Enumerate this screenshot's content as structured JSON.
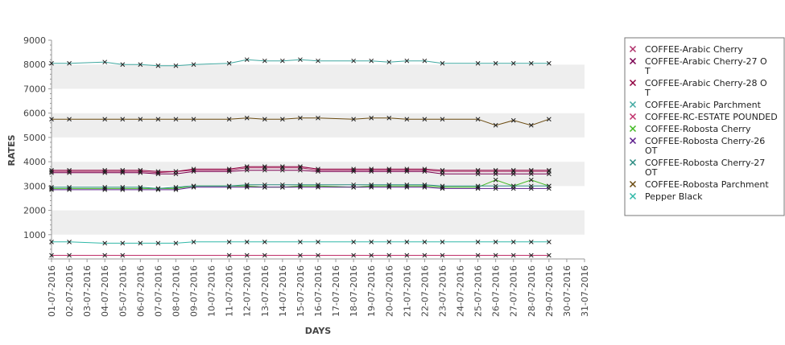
{
  "chart_data": {
    "type": "line",
    "xlabel": "DAYS",
    "ylabel": "RATES",
    "ylim": [
      0,
      9000
    ],
    "y_ticks": [
      "1000",
      "2000",
      "3000",
      "4000",
      "5000",
      "6000",
      "7000",
      "8000",
      "9000"
    ],
    "grid": "horizontal alternating bands",
    "legend_position": "right",
    "categories": [
      "01-07-2016",
      "02-07-2016",
      "03-07-2016",
      "04-07-2016",
      "05-07-2016",
      "06-07-2016",
      "07-07-2016",
      "08-07-2016",
      "09-07-2016",
      "10-07-2016",
      "11-07-2016",
      "12-07-2016",
      "13-07-2016",
      "14-07-2016",
      "15-07-2016",
      "16-07-2016",
      "17-07-2016",
      "18-07-2016",
      "19-07-2016",
      "20-07-2016",
      "21-07-2016",
      "22-07-2016",
      "23-07-2016",
      "24-07-2016",
      "25-07-2016",
      "26-07-2016",
      "27-07-2016",
      "28-07-2016",
      "29-07-2016",
      "30-07-2016",
      "31-07-2016"
    ],
    "series": [
      {
        "name": "COFFEE-Arabic Cherry",
        "legend_lines": [
          "COFFEE-Arabic Cherry"
        ],
        "color": "#b0306a",
        "values": [
          3600,
          3600,
          null,
          3600,
          3600,
          3600,
          3550,
          3600,
          3650,
          null,
          3650,
          3750,
          3750,
          3750,
          3750,
          3650,
          null,
          3650,
          3650,
          3650,
          3650,
          3650,
          3600,
          null,
          3600,
          3600,
          3600,
          3600,
          3600,
          null,
          null
        ]
      },
      {
        "name": "COFFEE-Arabic Cherry-27 OT",
        "legend_lines": [
          "COFFEE-Arabic Cherry-27 O",
          "T"
        ],
        "color": "#7a0050",
        "values": [
          3550,
          3550,
          null,
          3550,
          3550,
          3550,
          3500,
          3500,
          3600,
          null,
          3600,
          3650,
          3650,
          3650,
          3650,
          3600,
          null,
          3600,
          3600,
          3600,
          3600,
          3600,
          3500,
          null,
          3500,
          3500,
          3500,
          3500,
          3500,
          null,
          null
        ]
      },
      {
        "name": "COFFEE-Arabic Cherry-28 OT",
        "legend_lines": [
          "COFFEE-Arabic Cherry-28 O",
          "T"
        ],
        "color": "#900040",
        "values": [
          3650,
          3650,
          null,
          3650,
          3650,
          3650,
          3600,
          3600,
          3700,
          null,
          3700,
          3800,
          3800,
          3800,
          3800,
          3700,
          null,
          3700,
          3700,
          3700,
          3700,
          3700,
          3650,
          null,
          3650,
          3650,
          3650,
          3650,
          3650,
          null,
          null
        ]
      },
      {
        "name": "COFFEE-Arabic Parchment",
        "legend_lines": [
          "COFFEE-Arabic Parchment"
        ],
        "color": "#40a8a0",
        "values": [
          8050,
          8050,
          null,
          8100,
          8000,
          8000,
          7950,
          7950,
          8000,
          null,
          8050,
          8200,
          8150,
          8150,
          8200,
          8150,
          null,
          8150,
          8150,
          8100,
          8150,
          8150,
          8050,
          null,
          8050,
          8050,
          8050,
          8050,
          8050,
          null,
          null
        ]
      },
      {
        "name": "COFFEE-RC-ESTATE POUNDED",
        "legend_lines": [
          "COFFEE-RC-ESTATE POUNDED"
        ],
        "color": "#c0306a",
        "values": [
          150,
          150,
          null,
          150,
          150,
          null,
          null,
          null,
          null,
          null,
          150,
          150,
          150,
          null,
          150,
          150,
          null,
          150,
          150,
          150,
          150,
          150,
          150,
          null,
          150,
          150,
          150,
          150,
          150,
          null,
          null
        ]
      },
      {
        "name": "COFFEE-Robosta Cherry",
        "legend_lines": [
          "COFFEE-Robosta Cherry"
        ],
        "color": "#40b820",
        "values": [
          2900,
          2900,
          null,
          2900,
          2900,
          2900,
          2900,
          2900,
          3000,
          null,
          3000,
          3000,
          2950,
          2950,
          3000,
          3000,
          null,
          2950,
          3000,
          3000,
          3000,
          3000,
          2950,
          null,
          2950,
          3250,
          3000,
          3250,
          3000,
          null,
          null
        ]
      },
      {
        "name": "COFFEE-Robosta Cherry-26 OT",
        "legend_lines": [
          "COFFEE-Robosta Cherry-26",
          "OT"
        ],
        "color": "#5a1a8a",
        "values": [
          2850,
          2850,
          null,
          2850,
          2850,
          2850,
          2850,
          2850,
          2950,
          null,
          2950,
          2950,
          2950,
          2950,
          2950,
          2950,
          null,
          2950,
          2950,
          2950,
          2950,
          2950,
          2900,
          null,
          2900,
          2900,
          2900,
          2900,
          2900,
          null,
          null
        ]
      },
      {
        "name": "COFFEE-Robosta Cherry-27 OT",
        "legend_lines": [
          "COFFEE-Robosta Cherry-27",
          "OT"
        ],
        "color": "#2a8a80",
        "values": [
          2950,
          2950,
          null,
          2950,
          2950,
          2950,
          2900,
          2950,
          3000,
          null,
          3000,
          3050,
          3050,
          3050,
          3050,
          3050,
          null,
          3050,
          3050,
          3050,
          3050,
          3050,
          3000,
          null,
          3000,
          3000,
          3000,
          3000,
          3000,
          null,
          null
        ]
      },
      {
        "name": "COFFEE-Robosta Parchment",
        "legend_lines": [
          "COFFEE-Robosta Parchment"
        ],
        "color": "#6a4a10",
        "values": [
          5750,
          5750,
          null,
          5750,
          5750,
          5750,
          5750,
          5750,
          5750,
          null,
          5750,
          5800,
          5750,
          5750,
          5800,
          5800,
          null,
          5750,
          5800,
          5800,
          5750,
          5750,
          5750,
          null,
          5750,
          5500,
          5700,
          5500,
          5750,
          null,
          null
        ]
      },
      {
        "name": "Pepper Black",
        "legend_lines": [
          "Pepper Black"
        ],
        "color": "#30b8a8",
        "values": [
          700,
          700,
          null,
          650,
          650,
          650,
          650,
          650,
          700,
          null,
          700,
          700,
          700,
          null,
          700,
          700,
          null,
          700,
          700,
          700,
          700,
          700,
          700,
          null,
          700,
          700,
          700,
          700,
          700,
          null,
          null
        ]
      }
    ]
  }
}
